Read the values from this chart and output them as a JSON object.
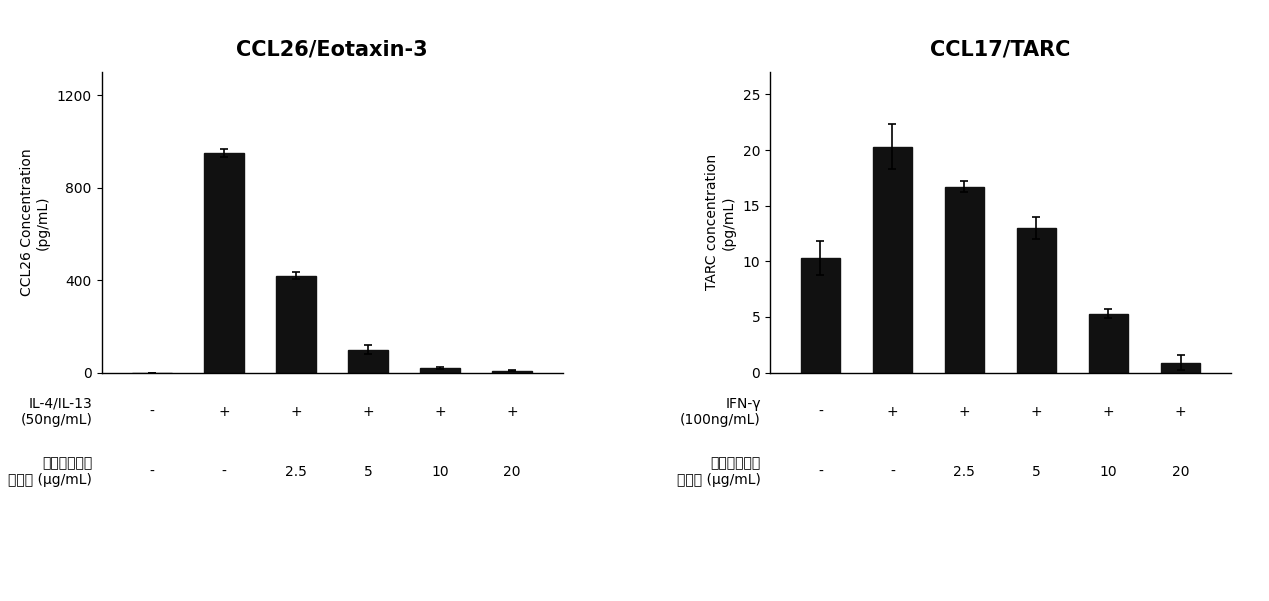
{
  "left": {
    "title": "CCL26/Eotaxin-3",
    "ylabel_line1": "CCL26 Concentration",
    "ylabel_line2": "(pg/mL)",
    "bar_values": [
      0,
      950,
      420,
      100,
      20,
      8
    ],
    "bar_errors": [
      0,
      18,
      15,
      18,
      5,
      3
    ],
    "ylim": [
      0,
      1300
    ],
    "yticks": [
      0,
      400,
      800,
      1200
    ],
    "bar_color": "#111111",
    "row1_label": "IL-4/IL-13\n(50ng/mL)",
    "row2_label": "말체나무줄기\n추출물 (μg/mL)",
    "row1_values": [
      "-",
      "+",
      "+",
      "+",
      "+",
      "+"
    ],
    "row2_values": [
      "-",
      "-",
      "2.5",
      "5",
      "10",
      "20"
    ]
  },
  "right": {
    "title": "CCL17/TARC",
    "ylabel_line1": "TARC concentration",
    "ylabel_line2": "(pg/mL)",
    "bar_values": [
      10.3,
      20.3,
      16.7,
      13.0,
      5.3,
      0.9
    ],
    "bar_errors": [
      1.5,
      2.0,
      0.5,
      1.0,
      0.4,
      0.7
    ],
    "ylim": [
      0,
      27
    ],
    "yticks": [
      0,
      5,
      10,
      15,
      20,
      25
    ],
    "bar_color": "#111111",
    "row1_label": "IFN-γ\n(100ng/mL)",
    "row2_label": "말체나무줄기\n추출물 (μg/mL)",
    "row1_values": [
      "-",
      "+",
      "+",
      "+",
      "+",
      "+"
    ],
    "row2_values": [
      "-",
      "-",
      "2.5",
      "5",
      "10",
      "20"
    ]
  },
  "background_color": "#ffffff",
  "bar_width": 0.55,
  "title_fontsize": 15,
  "axis_fontsize": 10,
  "tick_fontsize": 10,
  "label_fontsize": 10
}
